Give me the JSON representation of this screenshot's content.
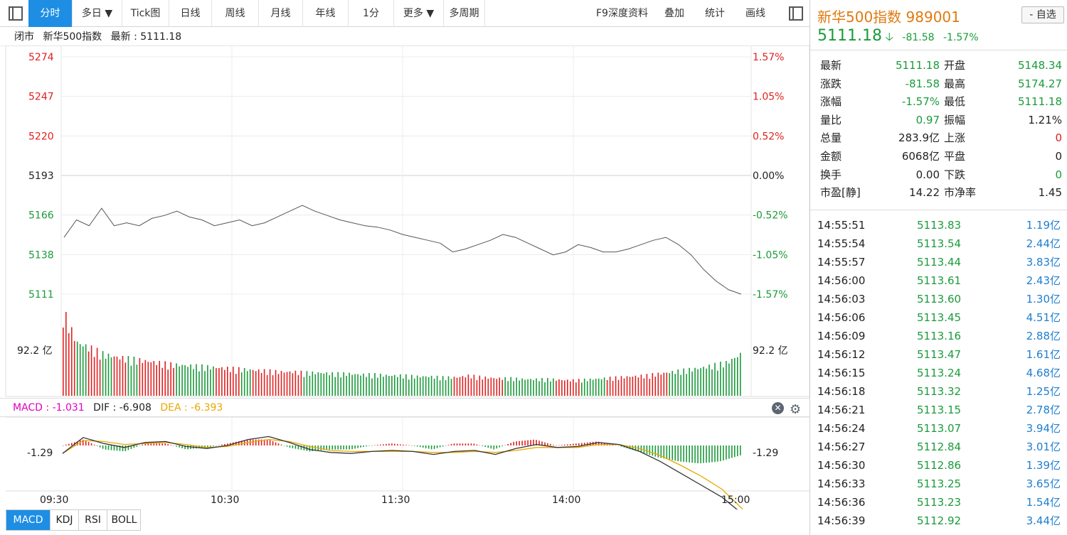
{
  "toolbar": {
    "tabs": [
      "分时",
      "多日 ▼",
      "Tick图",
      "日线",
      "周线",
      "月线",
      "年线",
      "1分",
      "更多 ▼",
      "多周期"
    ],
    "right_items": [
      "F9深度资料",
      "叠加",
      "统计",
      "画线"
    ]
  },
  "status": {
    "state": "闭市",
    "name": "新华500指数",
    "latest_label": "最新 : 5111.18"
  },
  "macd_header": {
    "macd": "MACD : -1.031",
    "dif": "DIF : -6.908",
    "dea": "DEA : -6.393"
  },
  "bottom_tabs": [
    "MACD",
    "KDJ",
    "RSI",
    "BOLL"
  ],
  "colors": {
    "accent": "#1e8ee4",
    "up": "#e02020",
    "down": "#1a9b3a",
    "name": "#e07a10",
    "dea": "#e8a800",
    "macd_label": "#e000c0"
  },
  "chart_data": {
    "type": "line",
    "price_axis": [
      "5274",
      "5247",
      "5220",
      "5193",
      "5166",
      "5138",
      "5111"
    ],
    "pct_axis": [
      "1.57%",
      "1.05%",
      "0.52%",
      "0.00%",
      "-0.52%",
      "-1.05%",
      "-1.57%"
    ],
    "ylim": [
      5111,
      5274
    ],
    "prev_close": 5193,
    "volume_label": "92.2 亿",
    "macd_axis_label": "-1.29",
    "time_labels": [
      "09:30",
      "10:30",
      "11:30",
      "14:00",
      "15:00"
    ],
    "price_series": [
      5150,
      5162,
      5158,
      5170,
      5158,
      5160,
      5158,
      5163,
      5165,
      5168,
      5164,
      5162,
      5158,
      5160,
      5162,
      5158,
      5160,
      5164,
      5168,
      5172,
      5168,
      5165,
      5162,
      5160,
      5158,
      5157,
      5155,
      5152,
      5150,
      5148,
      5146,
      5140,
      5142,
      5145,
      5148,
      5152,
      5150,
      5146,
      5142,
      5138,
      5140,
      5145,
      5143,
      5140,
      5140,
      5142,
      5145,
      5148,
      5150,
      5145,
      5138,
      5128,
      5120,
      5114,
      5111
    ],
    "volume_series": [
      92,
      58,
      52,
      45,
      42,
      40,
      38,
      36,
      34,
      33,
      32,
      31,
      30,
      29,
      28,
      27,
      26,
      26,
      25,
      25,
      24,
      24,
      23,
      23,
      22,
      22,
      21,
      21,
      20,
      20,
      22,
      20,
      19,
      19,
      18,
      18,
      18,
      17,
      17,
      18,
      19,
      20,
      21,
      22,
      24,
      26,
      28,
      30,
      33,
      36,
      45
    ],
    "dif_series": [
      -0.8,
      0.8,
      0.2,
      -0.2,
      0.3,
      0.4,
      -0.1,
      -0.3,
      0.0,
      0.6,
      0.9,
      0.3,
      -0.4,
      -0.7,
      -0.8,
      -0.6,
      -0.5,
      -0.6,
      -0.9,
      -0.6,
      -0.5,
      -0.9,
      -0.3,
      0.1,
      -0.2,
      -0.1,
      0.3,
      0.1,
      -0.6,
      -1.6,
      -2.8,
      -4.0,
      -5.2,
      -6.9
    ],
    "dea_series": [
      -0.8,
      0.5,
      0.4,
      0.1,
      0.2,
      0.3,
      0.1,
      -0.2,
      -0.1,
      0.3,
      0.6,
      0.4,
      -0.1,
      -0.5,
      -0.6,
      -0.6,
      -0.6,
      -0.6,
      -0.7,
      -0.7,
      -0.6,
      -0.7,
      -0.5,
      -0.2,
      -0.2,
      -0.2,
      0.1,
      0.1,
      -0.3,
      -1.0,
      -2.0,
      -3.1,
      -4.4,
      -6.4
    ]
  },
  "quote": {
    "name": "新华500指数  989001",
    "add_label": "- 自选",
    "price": "5111.18",
    "arrow": "🡣",
    "change": "-81.58",
    "change_pct": "-1.57%",
    "stats": [
      [
        "最新",
        "5111.18",
        "g",
        "开盘",
        "5148.34",
        "g"
      ],
      [
        "涨跌",
        "-81.58",
        "g",
        "最高",
        "5174.27",
        "g"
      ],
      [
        "涨幅",
        "-1.57%",
        "g",
        "最低",
        "5111.18",
        "g"
      ],
      [
        "量比",
        "0.97",
        "g",
        "振幅",
        "1.21%",
        "d"
      ],
      [
        "总量",
        "283.9亿",
        "d",
        "上涨",
        "0",
        "r"
      ],
      [
        "金额",
        "6068亿",
        "d",
        "平盘",
        "0",
        "d"
      ],
      [
        "换手",
        "0.00",
        "d",
        "下跌",
        "0",
        "g"
      ],
      [
        "市盈[静]",
        "14.22",
        "d",
        "市净率",
        "1.45",
        "d"
      ]
    ],
    "ticks": [
      [
        "14:55:51",
        "5113.83",
        "1.19亿"
      ],
      [
        "14:55:54",
        "5113.54",
        "2.44亿"
      ],
      [
        "14:55:57",
        "5113.44",
        "3.83亿"
      ],
      [
        "14:56:00",
        "5113.61",
        "2.43亿"
      ],
      [
        "14:56:03",
        "5113.60",
        "1.30亿"
      ],
      [
        "14:56:06",
        "5113.45",
        "4.51亿"
      ],
      [
        "14:56:09",
        "5113.16",
        "2.88亿"
      ],
      [
        "14:56:12",
        "5113.47",
        "1.61亿"
      ],
      [
        "14:56:15",
        "5113.24",
        "4.68亿"
      ],
      [
        "14:56:18",
        "5113.32",
        "1.25亿"
      ],
      [
        "14:56:21",
        "5113.15",
        "2.78亿"
      ],
      [
        "14:56:24",
        "5113.07",
        "3.94亿"
      ],
      [
        "14:56:27",
        "5112.84",
        "3.01亿"
      ],
      [
        "14:56:30",
        "5112.86",
        "1.39亿"
      ],
      [
        "14:56:33",
        "5113.25",
        "3.65亿"
      ],
      [
        "14:56:36",
        "5113.23",
        "1.54亿"
      ],
      [
        "14:56:39",
        "5112.92",
        "3.44亿"
      ]
    ]
  }
}
